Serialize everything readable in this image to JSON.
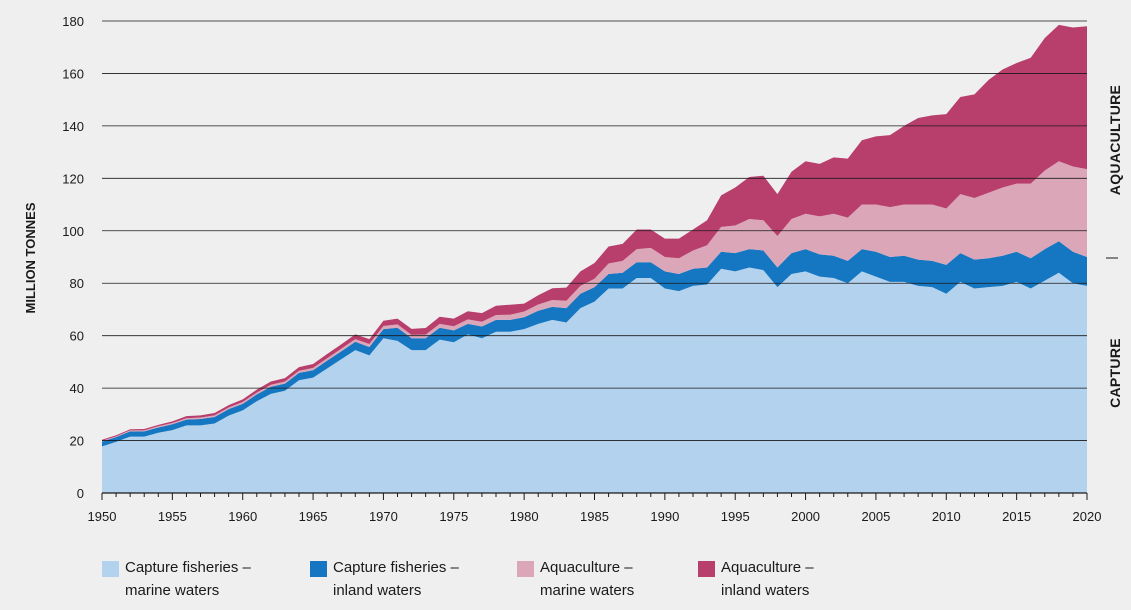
{
  "chart_data": {
    "type": "area",
    "stacked": true,
    "ylabel": "MILLION TONNES",
    "xlabel": "",
    "ylim": [
      0,
      180
    ],
    "xlim": [
      1950,
      2020
    ],
    "y_ticks": [
      0,
      20,
      40,
      60,
      80,
      100,
      120,
      140,
      160,
      180
    ],
    "x_ticks": [
      1950,
      1955,
      1960,
      1965,
      1970,
      1975,
      1980,
      1985,
      1990,
      1995,
      2000,
      2005,
      2010,
      2015,
      2020
    ],
    "grid": "horizontal",
    "side_labels": {
      "upper": "AQUACULTURE",
      "lower": "CAPTURE"
    },
    "x": [
      1950,
      1951,
      1952,
      1953,
      1954,
      1955,
      1956,
      1957,
      1958,
      1959,
      1960,
      1961,
      1962,
      1963,
      1964,
      1965,
      1966,
      1967,
      1968,
      1969,
      1970,
      1971,
      1972,
      1973,
      1974,
      1975,
      1976,
      1977,
      1978,
      1979,
      1980,
      1981,
      1982,
      1983,
      1984,
      1985,
      1986,
      1987,
      1988,
      1989,
      1990,
      1991,
      1992,
      1993,
      1994,
      1995,
      1996,
      1997,
      1998,
      1999,
      2000,
      2001,
      2002,
      2003,
      2004,
      2005,
      2006,
      2007,
      2008,
      2009,
      2010,
      2011,
      2012,
      2013,
      2014,
      2015,
      2016,
      2017,
      2018,
      2019,
      2020
    ],
    "series": [
      {
        "name": "Capture fisheries – marine waters",
        "color": "#b3d2ee",
        "values": [
          17.8,
          19.5,
          21.5,
          21.5,
          23.0,
          24.0,
          25.8,
          25.8,
          26.5,
          29.5,
          31.5,
          35.0,
          37.8,
          39.0,
          43.0,
          44.0,
          47.5,
          51.0,
          54.5,
          52.5,
          59.0,
          58.0,
          54.5,
          54.5,
          58.5,
          57.5,
          60.5,
          59.0,
          61.5,
          61.5,
          62.5,
          64.5,
          66.0,
          65.0,
          70.5,
          73.0,
          78.0,
          78.0,
          82.0,
          82.0,
          78.0,
          77.0,
          79.0,
          79.5,
          85.5,
          84.5,
          86.0,
          85.0,
          78.5,
          83.5,
          84.5,
          82.5,
          82.0,
          80.0,
          84.5,
          82.5,
          80.5,
          80.5,
          79.0,
          78.5,
          76.0,
          80.5,
          78.0,
          78.5,
          79.0,
          80.5,
          78.0,
          81.0,
          84.0,
          80.0,
          79.0
        ]
      },
      {
        "name": "Capture fisheries – inland waters",
        "color": "#1577c2",
        "values": [
          1.8,
          1.8,
          2.0,
          2.0,
          2.0,
          2.2,
          2.2,
          2.4,
          2.5,
          2.5,
          2.5,
          2.6,
          2.7,
          2.7,
          2.8,
          2.8,
          3.0,
          3.0,
          3.2,
          3.2,
          3.5,
          5.0,
          4.5,
          4.5,
          4.5,
          4.5,
          4.0,
          4.5,
          4.5,
          4.5,
          4.5,
          5.0,
          5.0,
          5.5,
          5.5,
          5.5,
          5.5,
          6.0,
          6.0,
          6.0,
          6.5,
          6.5,
          6.5,
          6.5,
          6.5,
          7.0,
          7.0,
          7.5,
          7.5,
          8.0,
          8.5,
          8.5,
          8.5,
          8.5,
          8.5,
          9.5,
          9.5,
          10.0,
          10.0,
          10.0,
          11.0,
          11.0,
          11.0,
          11.0,
          11.5,
          11.5,
          11.5,
          12.0,
          12.0,
          12.0,
          11.0
        ]
      },
      {
        "name": "Aquaculture – marine waters",
        "color": "#dba6b8",
        "values": [
          0.3,
          0.3,
          0.4,
          0.4,
          0.5,
          0.5,
          0.5,
          0.6,
          0.6,
          0.6,
          0.7,
          0.7,
          0.8,
          0.8,
          0.8,
          0.9,
          0.9,
          1.0,
          1.0,
          1.1,
          1.2,
          1.3,
          1.3,
          1.4,
          1.5,
          1.6,
          1.7,
          1.8,
          1.9,
          2.0,
          2.2,
          2.4,
          2.6,
          2.8,
          3.0,
          3.2,
          4.0,
          4.5,
          5.0,
          5.5,
          5.5,
          6.0,
          7.0,
          8.5,
          9.5,
          10.5,
          11.5,
          11.5,
          12.0,
          13.0,
          13.5,
          14.5,
          16.0,
          16.5,
          17.0,
          18.0,
          19.0,
          19.5,
          21.0,
          21.5,
          21.5,
          22.5,
          23.5,
          25.0,
          26.0,
          26.0,
          28.5,
          30.0,
          30.5,
          32.5,
          33.5
        ]
      },
      {
        "name": "Aquaculture – inland waters",
        "color": "#b83e6c",
        "values": [
          0.4,
          0.4,
          0.4,
          0.5,
          0.5,
          0.6,
          0.8,
          0.8,
          0.9,
          0.9,
          1.0,
          1.1,
          1.2,
          1.3,
          1.4,
          1.5,
          1.6,
          1.7,
          1.8,
          1.9,
          2.0,
          2.2,
          2.3,
          2.5,
          2.7,
          2.9,
          3.1,
          3.3,
          3.5,
          3.8,
          3.0,
          3.5,
          4.5,
          5.0,
          5.5,
          6.0,
          6.5,
          6.5,
          7.5,
          7.0,
          7.0,
          7.5,
          8.0,
          9.5,
          12.0,
          14.5,
          16.0,
          17.0,
          16.0,
          18.0,
          20.0,
          20.0,
          21.5,
          22.5,
          24.5,
          26.0,
          27.5,
          30.0,
          33.0,
          34.0,
          36.0,
          37.0,
          39.5,
          43.0,
          45.0,
          46.0,
          48.0,
          50.5,
          52.0,
          53.0,
          54.5
        ]
      }
    ]
  },
  "legend": [
    {
      "line1": "Capture fisheries –",
      "line2": "marine waters",
      "color": "#b3d2ee"
    },
    {
      "line1": "Capture fisheries –",
      "line2": "inland waters",
      "color": "#1577c2"
    },
    {
      "line1": "Aquaculture –",
      "line2": "marine waters",
      "color": "#dba6b8"
    },
    {
      "line1": "Aquaculture –",
      "line2": "inland waters",
      "color": "#b83e6c"
    }
  ]
}
